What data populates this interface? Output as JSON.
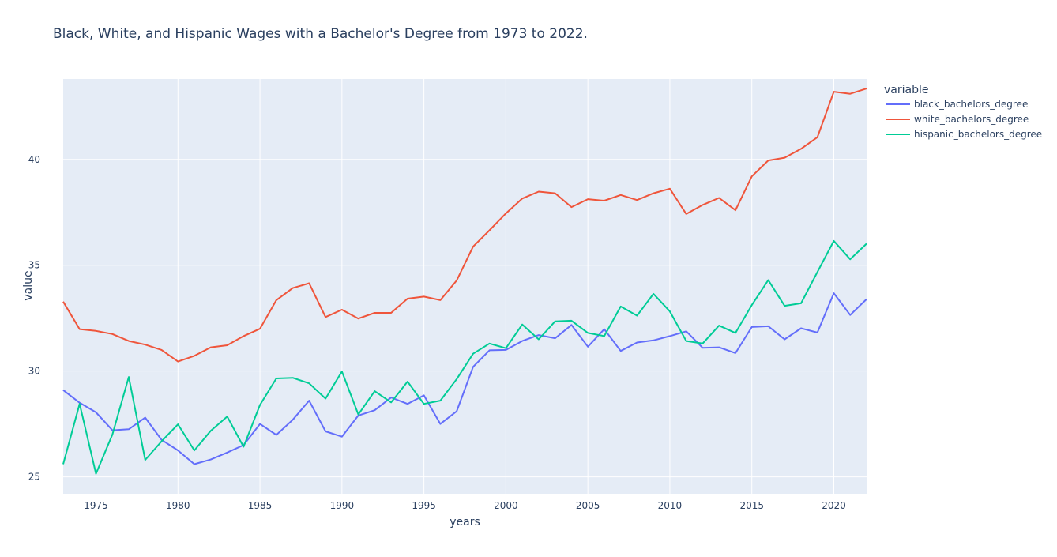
{
  "chart_data": {
    "type": "line",
    "title": "Black, White, and Hispanic Wages with a Bachelor's Degree from 1973 to 2022.",
    "xlabel": "years",
    "ylabel": "value",
    "legend_title": "variable",
    "legend_position": "right",
    "grid": true,
    "background": "#e5ecf6",
    "xlim": [
      1973,
      2022
    ],
    "ylim": [
      24.2,
      43.8
    ],
    "xticks": [
      1975,
      1980,
      1985,
      1990,
      1995,
      2000,
      2005,
      2010,
      2015,
      2020
    ],
    "yticks": [
      25,
      30,
      35,
      40
    ],
    "x": [
      1973,
      1974,
      1975,
      1976,
      1977,
      1978,
      1979,
      1980,
      1981,
      1982,
      1983,
      1984,
      1985,
      1986,
      1987,
      1988,
      1989,
      1990,
      1991,
      1992,
      1993,
      1994,
      1995,
      1996,
      1997,
      1998,
      1999,
      2000,
      2001,
      2002,
      2003,
      2004,
      2005,
      2006,
      2007,
      2008,
      2009,
      2010,
      2011,
      2012,
      2013,
      2014,
      2015,
      2016,
      2017,
      2018,
      2019,
      2020,
      2021,
      2022
    ],
    "series": [
      {
        "name": "black_bachelors_degree",
        "color": "#636efa",
        "values": [
          29.1,
          28.5,
          28.05,
          27.2,
          27.25,
          27.8,
          26.75,
          26.25,
          25.6,
          25.82,
          26.15,
          26.5,
          27.5,
          26.98,
          27.7,
          28.6,
          27.15,
          26.9,
          27.9,
          28.15,
          28.75,
          28.45,
          28.85,
          27.5,
          28.1,
          30.2,
          30.98,
          31.0,
          31.42,
          31.7,
          31.55,
          32.18,
          31.15,
          31.98,
          30.95,
          31.35,
          31.45,
          31.65,
          31.88,
          31.1,
          31.12,
          30.85,
          32.08,
          32.12,
          31.5,
          32.02,
          31.82,
          33.68,
          32.65,
          33.4
        ]
      },
      {
        "name": "white_bachelors_degree",
        "color": "#ef553b",
        "values": [
          33.28,
          31.98,
          31.9,
          31.75,
          31.42,
          31.25,
          31.0,
          30.45,
          30.72,
          31.12,
          31.22,
          31.65,
          32.0,
          33.35,
          33.92,
          34.15,
          32.55,
          32.9,
          32.48,
          32.75,
          32.75,
          33.42,
          33.52,
          33.35,
          34.28,
          35.88,
          36.65,
          37.45,
          38.15,
          38.48,
          38.4,
          37.75,
          38.12,
          38.05,
          38.32,
          38.08,
          38.4,
          38.62,
          37.42,
          37.85,
          38.18,
          37.6,
          39.2,
          39.95,
          40.08,
          40.5,
          41.05,
          43.2,
          43.1,
          43.35
        ]
      },
      {
        "name": "hispanic_bachelors_degree",
        "color": "#00cc96",
        "values": [
          25.6,
          28.45,
          25.15,
          27.0,
          29.72,
          25.8,
          26.68,
          27.48,
          26.25,
          27.18,
          27.85,
          26.42,
          28.4,
          29.65,
          29.68,
          29.42,
          28.7,
          29.98,
          27.95,
          29.05,
          28.52,
          29.5,
          28.45,
          28.6,
          29.62,
          30.82,
          31.3,
          31.08,
          32.2,
          31.5,
          32.35,
          32.38,
          31.8,
          31.65,
          33.05,
          32.62,
          33.65,
          32.82,
          31.42,
          31.3,
          32.15,
          31.8,
          33.12,
          34.3,
          33.08,
          33.2,
          34.68,
          36.15,
          35.28,
          36.02
        ]
      }
    ]
  }
}
